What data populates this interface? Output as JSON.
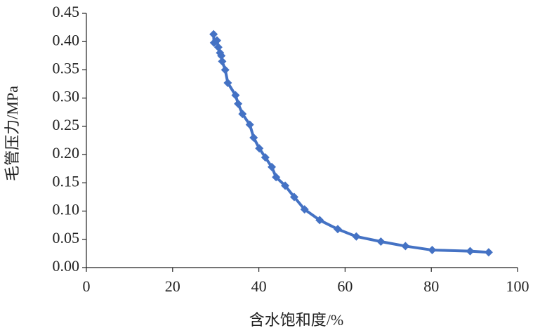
{
  "chart_data": {
    "type": "line",
    "xlabel": "含水饱和度/%",
    "ylabel": "毛管压力/MPa",
    "series": [
      {
        "color": "#4472c4",
        "x": [
          29.5,
          29.6,
          30.3,
          30.6,
          31.0,
          31.3,
          31.5,
          32.2,
          32.8,
          34.6,
          35.2,
          36.2,
          37.9,
          38.8,
          40.1,
          41.5,
          43.0,
          44.0,
          46.1,
          48.2,
          50.6,
          54.1,
          58.3,
          62.6,
          68.3,
          74.0,
          80.2,
          89.0,
          93.3
        ],
        "values": [
          0.413,
          0.398,
          0.402,
          0.39,
          0.38,
          0.375,
          0.365,
          0.35,
          0.327,
          0.305,
          0.29,
          0.272,
          0.253,
          0.23,
          0.211,
          0.195,
          0.178,
          0.16,
          0.145,
          0.125,
          0.103,
          0.084,
          0.068,
          0.055,
          0.046,
          0.038,
          0.031,
          0.029,
          0.027
        ]
      }
    ],
    "xlim": [
      0,
      100
    ],
    "xticks": [
      0,
      20,
      40,
      60,
      80,
      100
    ],
    "ylim": [
      0,
      0.45
    ],
    "yticks": [
      {
        "value": 0,
        "label": "0.00"
      },
      0.05,
      {
        "value": 0.1,
        "label": "0.10"
      },
      0.15,
      {
        "value": 0.2,
        "label": "0.20"
      },
      0.25,
      {
        "value": 0.3,
        "label": "0.30"
      },
      0.35,
      {
        "value": 0.4,
        "label": "0.40"
      },
      0.45
    ],
    "grid": false
  }
}
